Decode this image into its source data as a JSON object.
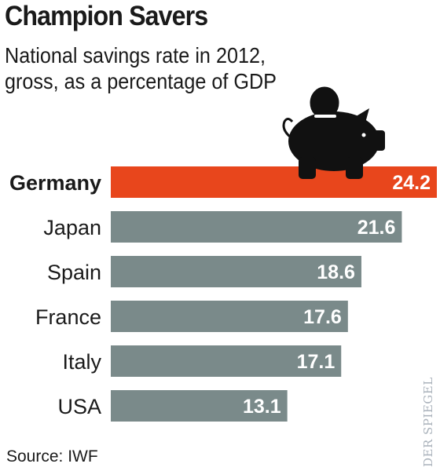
{
  "header": {
    "title": "Champion Savers",
    "subtitle": "National savings rate in 2012, gross, as a percentage of GDP"
  },
  "footer": {
    "source": "Source: IWF",
    "brand": "DER SPIEGEL"
  },
  "colors": {
    "highlight": "#e8461c",
    "bar": "#7a8a8a",
    "pig": "#111111",
    "text": "#1a1a1a",
    "brand": "#aab2bb"
  },
  "icons": [
    "piggy-bank-icon",
    "coin-icon"
  ],
  "chart_data": {
    "type": "bar",
    "orientation": "horizontal",
    "categories": [
      "Germany",
      "Japan",
      "Spain",
      "France",
      "Italy",
      "USA"
    ],
    "values": [
      24.2,
      21.6,
      18.6,
      17.6,
      17.1,
      13.1
    ],
    "highlight": "Germany",
    "title": "Champion Savers",
    "subtitle": "National savings rate in 2012, gross, as a percentage of GDP",
    "xlabel": "",
    "ylabel": "",
    "xlim": [
      0,
      24.2
    ],
    "grid": false,
    "legend": "none"
  }
}
